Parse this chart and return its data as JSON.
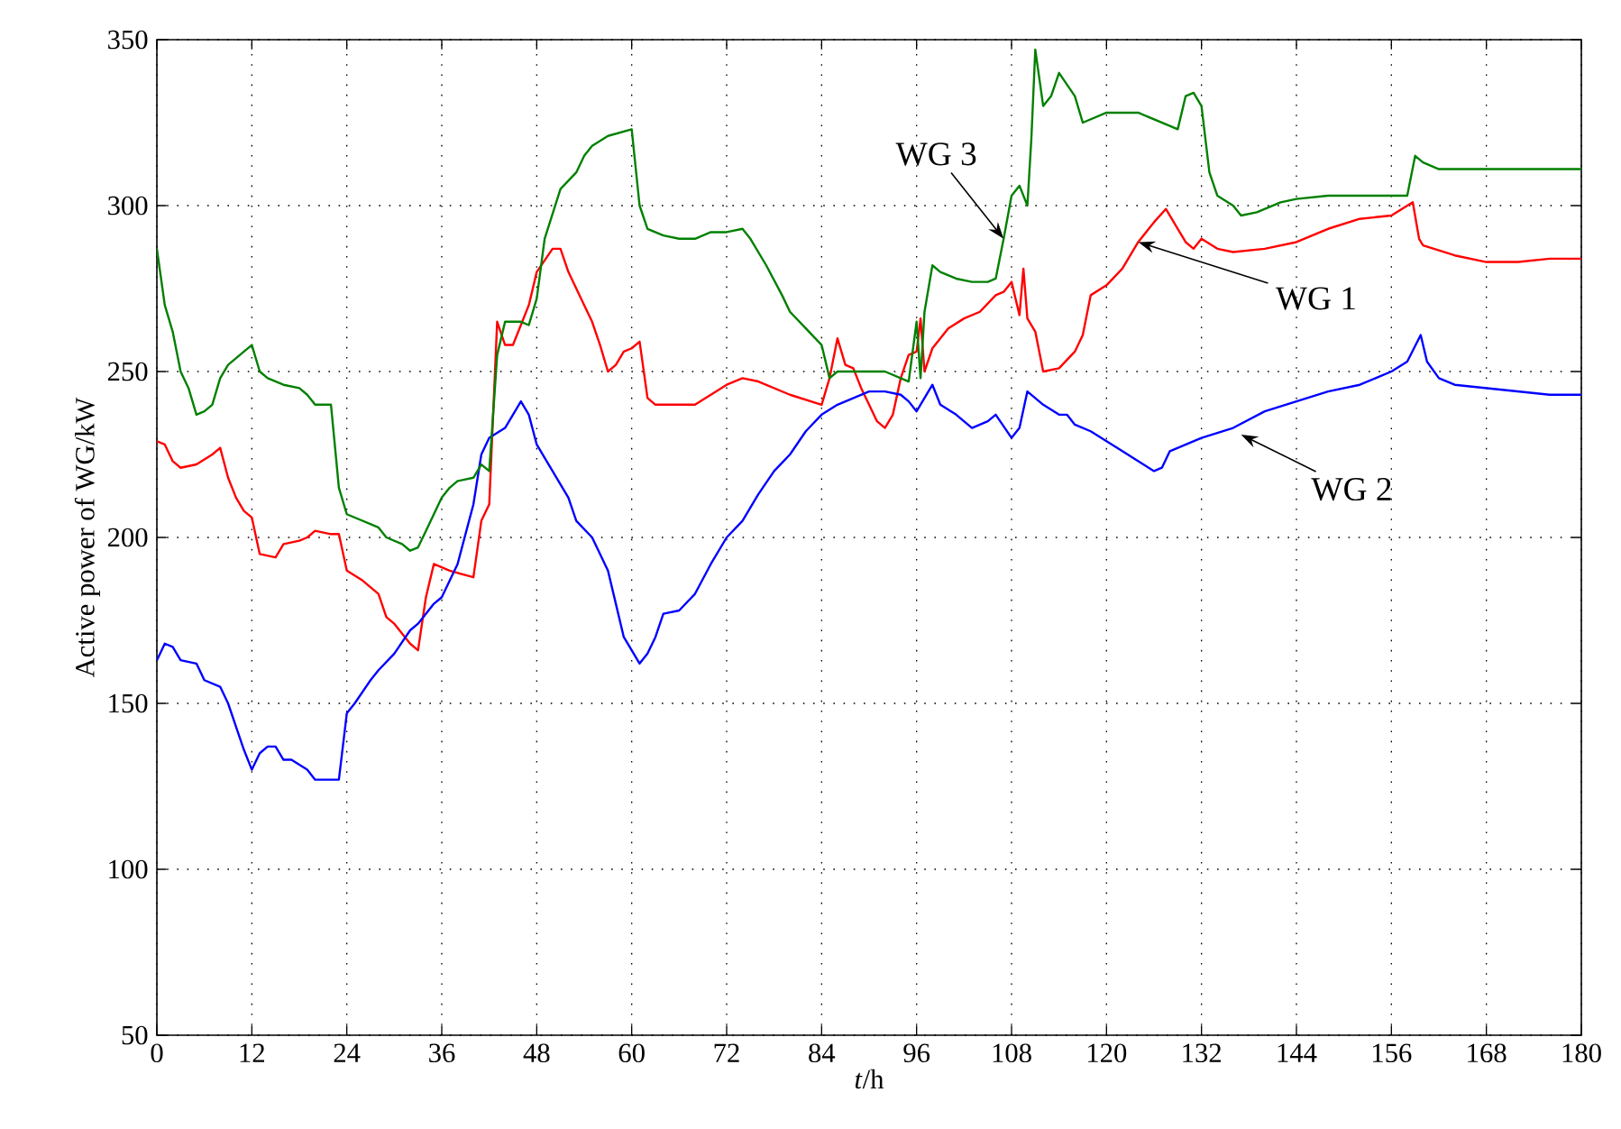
{
  "chart_data": {
    "type": "line",
    "xlabel": "*t*/h",
    "ylabel": "Active power of WG/kW",
    "xlim": [
      0,
      180
    ],
    "ylim": [
      50,
      350
    ],
    "xticks": [
      0,
      12,
      24,
      36,
      48,
      60,
      72,
      84,
      96,
      108,
      120,
      132,
      144,
      156,
      168,
      180
    ],
    "yticks": [
      50,
      100,
      150,
      200,
      250,
      300,
      350
    ],
    "grid": true,
    "line_style": "solid",
    "marker": "none",
    "annotations": [
      {
        "text": "WG 3",
        "x": 107,
        "y": 290
      },
      {
        "text": "WG 1",
        "x": 124,
        "y": 289
      },
      {
        "text": "WG 2",
        "x": 137,
        "y": 231
      }
    ],
    "series": [
      {
        "color": "#ff0000",
        "x": [
          0,
          1,
          2,
          3,
          5,
          7,
          8,
          9,
          10,
          11,
          12,
          13,
          15,
          16,
          18,
          19,
          20,
          22,
          23,
          24,
          26,
          28,
          29,
          30,
          32,
          33,
          34,
          35,
          37,
          40,
          41,
          42,
          43,
          44,
          45,
          47,
          48,
          50,
          51,
          52,
          54,
          55,
          56,
          57,
          58,
          59,
          60,
          61,
          62,
          63,
          66,
          68,
          70,
          72,
          74,
          76,
          78,
          80,
          84,
          85,
          86,
          87,
          88,
          89,
          90,
          91,
          92,
          93,
          94,
          95,
          96,
          96.5,
          97,
          98,
          99,
          100,
          102,
          104,
          106,
          107,
          108,
          109,
          109.5,
          110,
          111,
          112,
          114,
          116,
          117,
          118,
          120,
          122,
          124,
          126,
          127.5,
          130,
          131,
          132,
          134,
          136,
          140,
          144,
          148,
          152,
          156,
          158.7,
          159.5,
          160,
          164,
          168,
          172,
          176,
          180
        ],
        "values": [
          229,
          228,
          223,
          221,
          222,
          225,
          227,
          218,
          212,
          208,
          206,
          195,
          194,
          198,
          199,
          200,
          202,
          201,
          201,
          190,
          187,
          183,
          176,
          174,
          168,
          166,
          182,
          192,
          190,
          188,
          205,
          210,
          265,
          258,
          258,
          270,
          280,
          287,
          287,
          280,
          270,
          265,
          258,
          250,
          252,
          256,
          257,
          259,
          242,
          240,
          240,
          240,
          243,
          246,
          248,
          247,
          245,
          243,
          240,
          248,
          260,
          252,
          251,
          245,
          240,
          235,
          233,
          237,
          248,
          255,
          256,
          266,
          250,
          257,
          260,
          263,
          266,
          268,
          273,
          274,
          277,
          267,
          281,
          266,
          262,
          250,
          251,
          256,
          261,
          273,
          276,
          281,
          289,
          295,
          299,
          289,
          287,
          290,
          287,
          286,
          287,
          289,
          293,
          296,
          297,
          301,
          290,
          288,
          285,
          283,
          283,
          284,
          284
        ]
      },
      {
        "color": "#0000ff",
        "x": [
          0,
          1,
          2,
          3,
          5,
          6,
          8,
          9,
          10,
          11,
          12,
          13,
          14,
          15,
          16,
          17,
          19,
          20,
          23,
          24,
          25,
          27,
          28,
          30,
          32,
          33,
          35,
          36,
          38,
          40,
          41,
          42,
          44,
          46,
          47,
          48,
          50,
          52,
          53,
          55,
          57,
          58,
          59,
          60,
          61,
          62,
          63,
          64,
          66,
          68,
          70,
          72,
          74,
          76,
          78,
          80,
          82,
          84,
          86,
          88,
          90,
          92,
          94,
          95,
          96,
          97,
          98,
          99,
          101,
          103,
          105,
          106,
          108,
          109,
          110,
          112,
          114,
          115,
          116,
          118,
          120,
          122,
          124,
          126,
          127,
          128,
          130,
          132,
          136,
          140,
          144,
          148,
          152,
          156,
          158,
          159.7,
          160.5,
          162,
          164,
          168,
          172,
          176,
          180
        ],
        "values": [
          163,
          168,
          167,
          163,
          162,
          157,
          155,
          150,
          143,
          136,
          130,
          135,
          137,
          137,
          133,
          133,
          130,
          127,
          127,
          147,
          150,
          157,
          160,
          165,
          172,
          174,
          180,
          182,
          192,
          210,
          225,
          230,
          233,
          241,
          237,
          228,
          220,
          212,
          205,
          200,
          190,
          180,
          170,
          166,
          162,
          165,
          170,
          177,
          178,
          183,
          192,
          200,
          205,
          213,
          220,
          225,
          232,
          237,
          240,
          242,
          244,
          244,
          243,
          241,
          238,
          242,
          246,
          240,
          237,
          233,
          235,
          237,
          230,
          233,
          244,
          240,
          237,
          237,
          234,
          232,
          229,
          226,
          223,
          220,
          221,
          226,
          228,
          230,
          233,
          238,
          241,
          244,
          246,
          250,
          253,
          261,
          253,
          248,
          246,
          245,
          244,
          243,
          243
        ]
      },
      {
        "color": "#008000",
        "x": [
          0,
          1,
          2,
          3,
          4,
          5,
          6,
          7,
          8,
          9,
          11,
          12,
          13,
          14,
          16,
          18,
          19,
          20,
          22,
          23,
          24,
          26,
          28,
          29,
          31,
          32,
          33,
          34,
          36,
          37,
          38,
          40,
          41,
          42,
          43,
          44,
          46,
          47,
          48,
          49,
          51,
          53,
          54,
          55,
          57,
          60,
          61,
          62,
          64,
          66,
          68,
          70,
          72,
          74,
          75,
          77,
          79,
          80,
          82,
          84,
          85,
          86,
          90,
          92,
          95,
          96,
          96.5,
          97,
          98,
          99,
          101,
          103,
          105,
          106,
          107,
          108,
          109,
          110,
          110.5,
          111,
          112,
          113,
          114,
          116,
          117,
          120,
          124,
          128,
          129,
          130,
          131,
          132,
          133,
          134,
          136,
          137,
          139,
          142,
          144,
          148,
          156,
          158,
          159,
          160,
          162,
          168,
          172,
          176,
          180
        ],
        "values": [
          287,
          270,
          262,
          250,
          245,
          237,
          238,
          240,
          248,
          252,
          256,
          258,
          250,
          248,
          246,
          245,
          243,
          240,
          240,
          215,
          207,
          205,
          203,
          200,
          198,
          196,
          197,
          202,
          212,
          215,
          217,
          218,
          222,
          220,
          255,
          265,
          265,
          264,
          272,
          290,
          305,
          310,
          315,
          318,
          321,
          323,
          300,
          293,
          291,
          290,
          290,
          292,
          292,
          293,
          290,
          282,
          273,
          268,
          263,
          258,
          248,
          250,
          250,
          250,
          247,
          265,
          248,
          268,
          282,
          280,
          278,
          277,
          277,
          278,
          290,
          303,
          306,
          300,
          320,
          347,
          330,
          333,
          340,
          333,
          325,
          328,
          328,
          324,
          323,
          333,
          334,
          330,
          310,
          303,
          300,
          297,
          298,
          301,
          302,
          303,
          303,
          303,
          315,
          313,
          311,
          311,
          311,
          311,
          311
        ]
      }
    ]
  }
}
